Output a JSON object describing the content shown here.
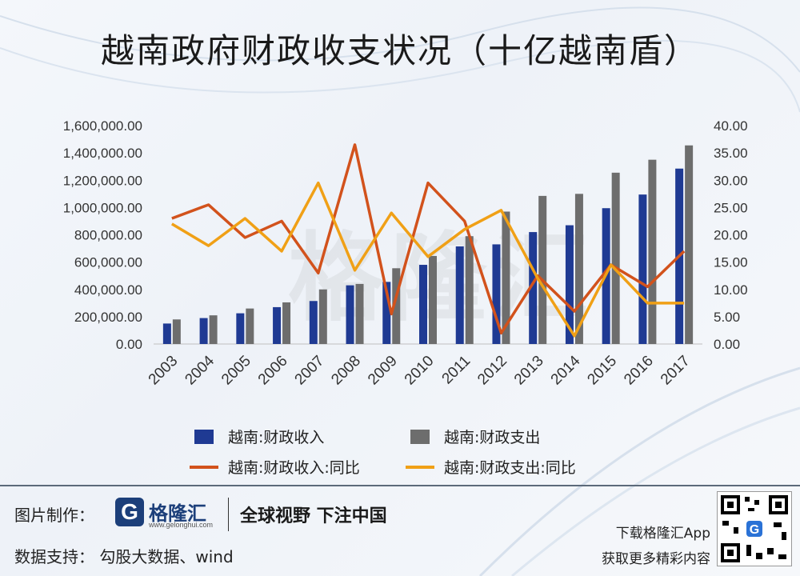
{
  "title": "越南政府财政收支状况（十亿越南盾）",
  "watermark": "格隆汇",
  "chart_data": {
    "type": "bar",
    "x": [
      "2003",
      "2004",
      "2005",
      "2006",
      "2007",
      "2008",
      "2009",
      "2010",
      "2011",
      "2012",
      "2013",
      "2014",
      "2015",
      "2016",
      "2017"
    ],
    "y_left_ticks": [
      "0.00",
      "200,000.00",
      "400,000.00",
      "600,000.00",
      "800,000.00",
      "1,000,000.00",
      "1,200,000.00",
      "1,400,000.00",
      "1,600,000.00"
    ],
    "y_right_ticks": [
      "0.00",
      "5.00",
      "10.00",
      "15.00",
      "20.00",
      "25.00",
      "30.00",
      "35.00",
      "40.00"
    ],
    "ylim_left": [
      0,
      1600000
    ],
    "ylim_right": [
      0,
      40
    ],
    "series": [
      {
        "name": "越南:财政收入",
        "kind": "bar",
        "axis": "left",
        "color": "#1f3a93",
        "values": [
          150000,
          190000,
          225000,
          270000,
          315000,
          430000,
          455000,
          580000,
          715000,
          730000,
          820000,
          870000,
          995000,
          1095000,
          1285000
        ]
      },
      {
        "name": "越南:财政支出",
        "kind": "bar",
        "axis": "left",
        "color": "#6d6d6d",
        "values": [
          180000,
          210000,
          260000,
          305000,
          400000,
          440000,
          555000,
          645000,
          790000,
          970000,
          1085000,
          1100000,
          1255000,
          1350000,
          1455000
        ]
      },
      {
        "name": "越南:财政收入:同比",
        "kind": "line",
        "axis": "right",
        "color": "#d2521c",
        "values": [
          23.0,
          25.5,
          19.5,
          22.5,
          13.0,
          36.5,
          5.5,
          29.5,
          22.5,
          2.0,
          12.5,
          6.0,
          14.5,
          10.5,
          17.0
        ]
      },
      {
        "name": "越南:财政支出:同比",
        "kind": "line",
        "axis": "right",
        "color": "#f0a016",
        "values": [
          22.0,
          18.0,
          23.0,
          17.0,
          29.5,
          13.5,
          24.0,
          16.0,
          21.0,
          24.5,
          12.0,
          1.5,
          14.5,
          7.5,
          7.5
        ]
      }
    ],
    "legend_position": "bottom"
  },
  "footer": {
    "credit_image": "图片制作：",
    "credit_data": "数据支持：  勾股大数据、wind",
    "logo_letter": "G",
    "logo_text": "格隆汇",
    "logo_url": "www.gelonghui.com",
    "slogan": "全球视野 下注中国",
    "app_line1": "下载格隆汇App",
    "app_line2": "获取更多精彩内容"
  }
}
